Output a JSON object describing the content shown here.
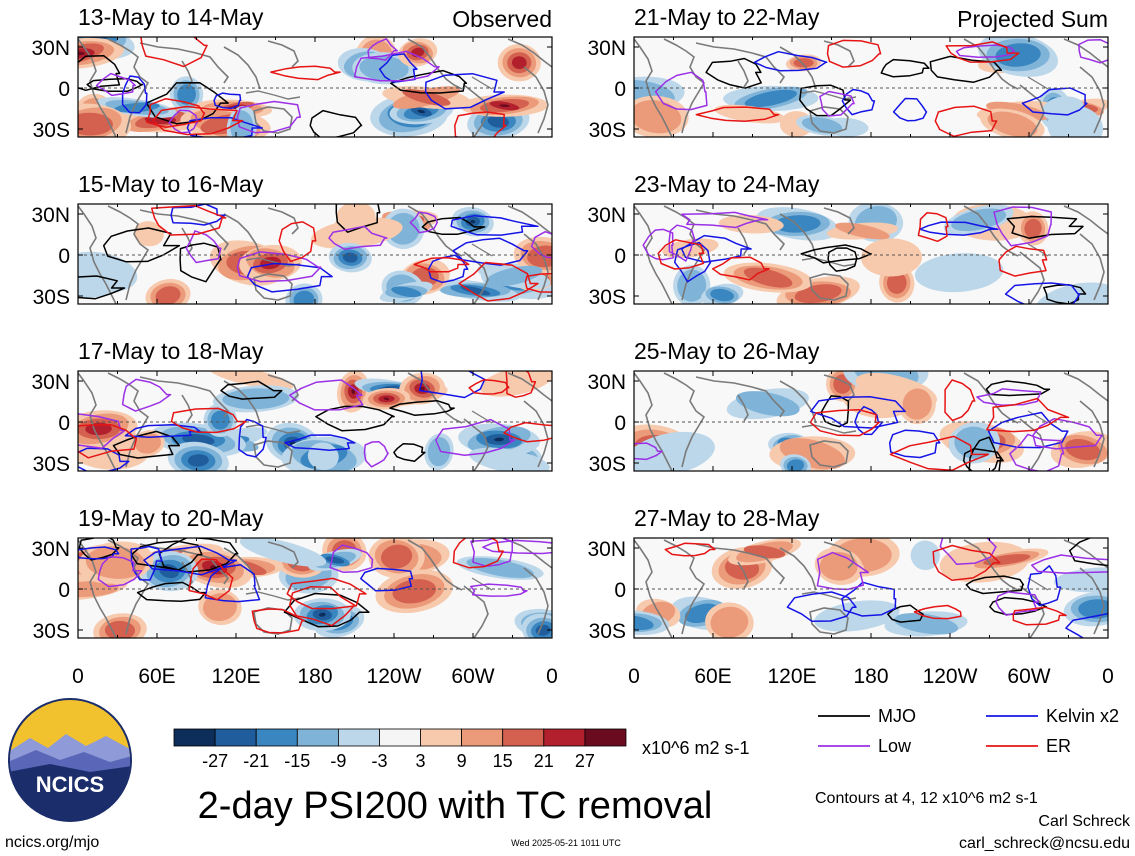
{
  "chart_data": {
    "type": "heatmap",
    "title": "2-day PSI200 with TC removal",
    "xticks": [
      "0",
      "60E",
      "120E",
      "180",
      "120W",
      "60W",
      "0"
    ],
    "yticks": [
      "30N",
      "0",
      "30S"
    ],
    "xlim": [
      0,
      360
    ],
    "ylim": [
      -40,
      40
    ],
    "columns": [
      {
        "label": "Observed",
        "panels": [
          "13-May to 14-May",
          "15-May to 16-May",
          "17-May to 18-May",
          "19-May to 20-May"
        ]
      },
      {
        "label": "Projected Sum",
        "panels": [
          "21-May to 22-May",
          "23-May to 24-May",
          "25-May to 26-May",
          "27-May to 28-May"
        ]
      }
    ],
    "colorbar": {
      "ticks": [
        "-27",
        "-21",
        "-15",
        "-9",
        "-3",
        "3",
        "9",
        "15",
        "21",
        "27"
      ],
      "units": "x10^6 m2 s-1",
      "colors": [
        "#0d2d5b",
        "#1f5d9c",
        "#3a86c0",
        "#7fb4d8",
        "#bcd7ea",
        "#f5f5f5",
        "#f7c9ad",
        "#eb9a7a",
        "#d4604f",
        "#b2202e",
        "#6b0b20"
      ]
    },
    "legend": [
      {
        "name": "MJO",
        "color": "#000000"
      },
      {
        "name": "Kelvin x2",
        "color": "#1414e6"
      },
      {
        "name": "Low",
        "color": "#9b30e6"
      },
      {
        "name": "ER",
        "color": "#e61414"
      }
    ],
    "contour_note": "Contours at 4, 12 x10^6 m2 s-1"
  },
  "logo": {
    "text": "NCICS"
  },
  "footer": {
    "left": "ncics.org/mjo",
    "center": "Wed 2025-05-21 1011 UTC",
    "author": "Carl Schreck",
    "email": "carl_schreck@ncsu.edu"
  }
}
